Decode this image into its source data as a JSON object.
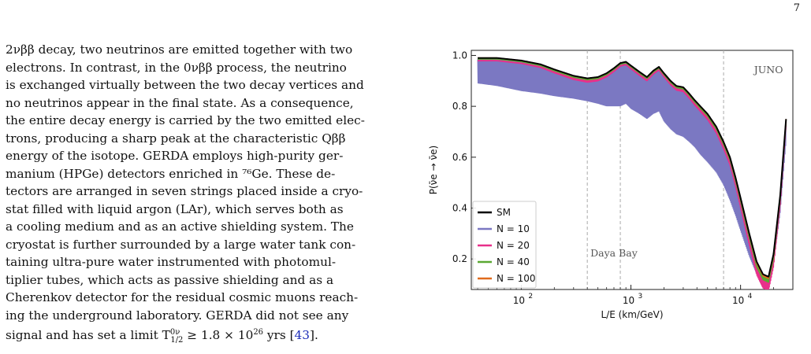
{
  "page": {
    "number": "7"
  },
  "text": {
    "lines": [
      "2νββ decay, two neutrinos are emitted together with two",
      "electrons. In contrast, in the 0νββ process, the neutrino",
      "is exchanged virtually between the two decay vertices and",
      "no neutrinos appear in the final state. As a consequence,",
      "the entire decay energy is carried by the two emitted elec-",
      "trons, producing a sharp peak at the characteristic Qββ",
      "energy of the isotope. GERDA employs high-purity ger-",
      "manium (HPGe) detectors enriched in ⁷⁶Ge. These de-",
      "tectors are arranged in seven strings placed inside a cryo-",
      "stat filled with liquid argon (LAr), which serves both as",
      "a cooling medium and as an active shielding system. The",
      "cryostat is further surrounded by a large water tank con-",
      "taining ultra-pure water instrumented with photomul-",
      "tiplier tubes, which acts as passive shielding and as a",
      "Cherenkov detector for the residual cosmic muons reach-",
      "ing the underground laboratory. GERDA did not see any"
    ],
    "last_line_prefix": "signal and has set a limit T",
    "last_line_sup": "0ν",
    "last_line_sub": "1/2",
    "last_line_rest": " ≥ 1.8 × 10",
    "last_line_exp": "26",
    "last_line_tail": " yrs [",
    "citation": "43",
    "last_line_end": "]."
  },
  "chart_data": {
    "type": "line",
    "xlabel": "L/E (km/GeV)",
    "ylabel": "P(ν̄e → ν̄e)",
    "xscale": "log",
    "xlim": [
      35,
      30000
    ],
    "ylim": [
      0.08,
      1.02
    ],
    "xticks": [
      100,
      1000,
      10000
    ],
    "xticklabels": [
      "10",
      "10",
      "10"
    ],
    "xtick_exponents": [
      "2",
      "3",
      "4"
    ],
    "yticks": [
      0.2,
      0.4,
      0.6,
      0.8,
      1.0
    ],
    "yticklabels": [
      "0.2",
      "0.4",
      "0.6",
      "0.8",
      "1.0"
    ],
    "vlines": [
      400,
      800,
      7000
    ],
    "annotations": [
      {
        "text": "Daya Bay",
        "x": 700,
        "y": 0.21
      },
      {
        "text": "JUNO",
        "x": 18000,
        "y": 0.93
      }
    ],
    "legend_position": "lower-left",
    "series": [
      {
        "name": "SM",
        "color": "#000000",
        "width": 2.0
      },
      {
        "name": "N = 10",
        "color": "#7b78c2",
        "width": 1.6
      },
      {
        "name": "N = 20",
        "color": "#e8308a",
        "width": 1.6
      },
      {
        "name": "N = 40",
        "color": "#5aa832",
        "width": 1.6
      },
      {
        "name": "N = 100",
        "color": "#e06b1c",
        "width": 1.6
      }
    ],
    "curve_shape": {
      "x": [
        40,
        60,
        100,
        150,
        200,
        300,
        400,
        500,
        600,
        700,
        800,
        900,
        1000,
        1200,
        1400,
        1600,
        1800,
        2000,
        2300,
        2600,
        3000,
        3400,
        3800,
        4300,
        5000,
        6000,
        7000,
        8000,
        9000,
        10000,
        12000,
        14000,
        16000,
        18000,
        20000,
        23000,
        26000
      ],
      "y": [
        0.99,
        0.99,
        0.98,
        0.965,
        0.945,
        0.92,
        0.91,
        0.915,
        0.93,
        0.95,
        0.97,
        0.975,
        0.96,
        0.935,
        0.915,
        0.94,
        0.955,
        0.93,
        0.9,
        0.88,
        0.875,
        0.85,
        0.825,
        0.8,
        0.77,
        0.72,
        0.66,
        0.6,
        0.52,
        0.44,
        0.3,
        0.19,
        0.14,
        0.13,
        0.22,
        0.45,
        0.75
      ]
    },
    "n10_band": {
      "x": [
        40,
        60,
        100,
        150,
        200,
        300,
        400,
        500,
        600,
        700,
        800,
        900,
        1000,
        1200,
        1400,
        1600,
        1800,
        2000,
        2300,
        2600,
        3000,
        3400,
        3800,
        4300,
        5000,
        6000,
        7000,
        8000,
        9000,
        10000,
        12000,
        14000,
        16000,
        18000,
        20000,
        23000,
        26000
      ],
      "ylow": [
        0.89,
        0.88,
        0.86,
        0.85,
        0.84,
        0.83,
        0.82,
        0.81,
        0.8,
        0.8,
        0.8,
        0.81,
        0.79,
        0.77,
        0.75,
        0.77,
        0.78,
        0.74,
        0.71,
        0.69,
        0.68,
        0.66,
        0.64,
        0.61,
        0.58,
        0.54,
        0.49,
        0.43,
        0.37,
        0.31,
        0.21,
        0.14,
        0.11,
        0.11,
        0.18,
        0.38,
        0.66
      ]
    }
  }
}
